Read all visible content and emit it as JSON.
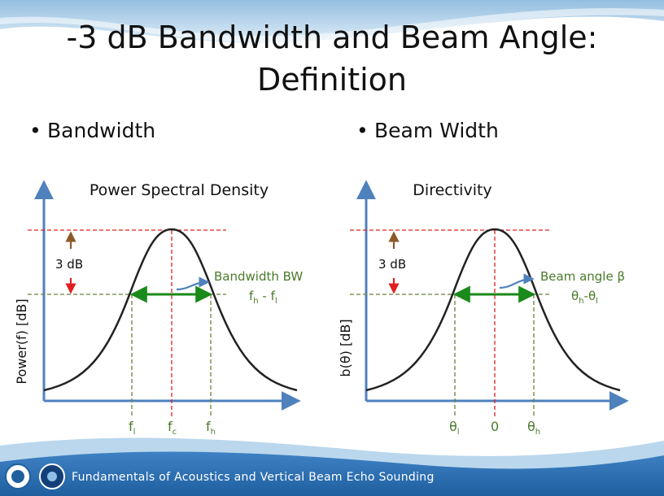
{
  "slide": {
    "title_line1": "-3 dB Bandwidth and Beam Angle:",
    "title_line2": "Definition",
    "footer": "Fundamentals of Acoustics and Vertical Beam Echo Sounding"
  },
  "bullets": {
    "left": "Bandwidth",
    "right": "Beam Width"
  },
  "left_diagram": {
    "title": "Power Spectral Density",
    "ylabel": "Power(f) [dB]",
    "db_label": "3 dB",
    "bw_label": "Bandwidth BW",
    "bw_formula": {
      "a": "f",
      "a_sub": "h",
      "sep": " - ",
      "b": "f",
      "b_sub": "l"
    },
    "ticks": [
      {
        "main": "f",
        "sub": "l"
      },
      {
        "main": "f",
        "sub": "c"
      },
      {
        "main": "f",
        "sub": "h"
      }
    ]
  },
  "right_diagram": {
    "title": "Directivity",
    "ylabel": "b(θ)  [dB]",
    "db_label": "3 dB",
    "bw_label": "Beam angle β",
    "bw_formula": {
      "a": "θ",
      "a_sub": "h",
      "sep": "-",
      "b": "θ",
      "b_sub": "l"
    },
    "ticks": [
      {
        "main": "θ",
        "sub": "l"
      },
      {
        "main": "0",
        "sub": ""
      },
      {
        "main": "θ",
        "sub": "h"
      }
    ]
  },
  "colors": {
    "axis": "#4f81bd",
    "curve": "#222222",
    "red": "#e02020",
    "green": "#1a8a1a",
    "olive": "#6b7f3a",
    "brown_arrow": "#8b5a2b",
    "label_green": "#4a7a2a",
    "wave_dark": "#2f6fb3",
    "wave_light": "#a9cde8"
  }
}
